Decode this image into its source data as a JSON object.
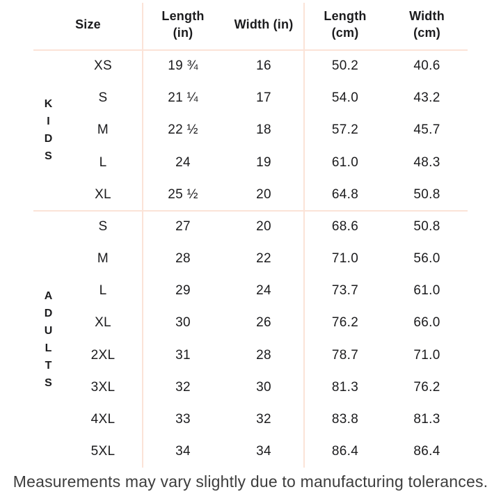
{
  "header": {
    "size": "Size",
    "length_in": "Length\n(in)",
    "width_in": "Width (in)",
    "length_cm": "Length\n(cm)",
    "width_cm": "Width\n(cm)"
  },
  "groups": [
    {
      "label": "KIDS",
      "letters": [
        "K",
        "I",
        "D",
        "S"
      ],
      "rows": [
        [
          "XS",
          "19 ¾",
          "16",
          "50.2",
          "40.6"
        ],
        [
          "S",
          "21 ¼",
          "17",
          "54.0",
          "43.2"
        ],
        [
          "M",
          "22 ½",
          "18",
          "57.2",
          "45.7"
        ],
        [
          "L",
          "24",
          "19",
          "61.0",
          "48.3"
        ],
        [
          "XL",
          "25 ½",
          "20",
          "64.8",
          "50.8"
        ]
      ]
    },
    {
      "label": "ADULTS",
      "letters": [
        "A",
        "D",
        "U",
        "L",
        "T",
        "S"
      ],
      "rows": [
        [
          "S",
          "27",
          "20",
          "68.6",
          "50.8"
        ],
        [
          "M",
          "28",
          "22",
          "71.0",
          "56.0"
        ],
        [
          "L",
          "29",
          "24",
          "73.7",
          "61.0"
        ],
        [
          "XL",
          "30",
          "26",
          "76.2",
          "66.0"
        ],
        [
          "2XL",
          "31",
          "28",
          "78.7",
          "71.0"
        ],
        [
          "3XL",
          "32",
          "30",
          "81.3",
          "76.2"
        ],
        [
          "4XL",
          "33",
          "32",
          "83.8",
          "81.3"
        ],
        [
          "5XL",
          "34",
          "34",
          "86.4",
          "86.4"
        ]
      ]
    }
  ],
  "footer": "Measurements may vary slightly due to manufacturing tolerances.",
  "colors": {
    "divider": "#fbe3d7",
    "text": "#1b1b1d",
    "footer_text": "#3d3d3d",
    "background": "#ffffff"
  }
}
